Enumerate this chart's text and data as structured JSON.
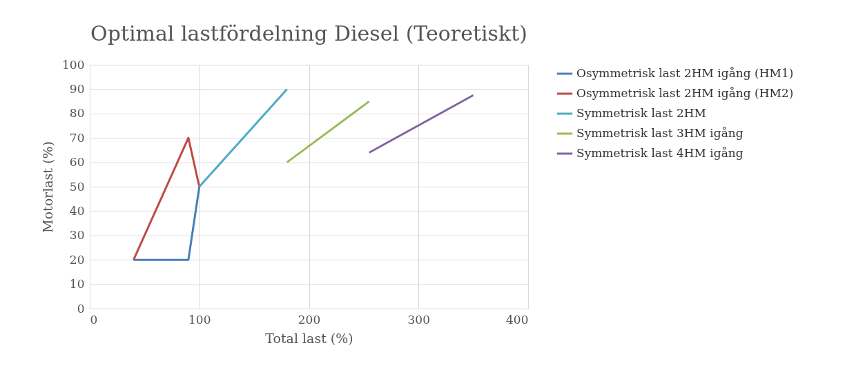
{
  "chart_data": {
    "type": "line",
    "title": "Optimal lastfördelning Diesel (Teoretiskt)",
    "xlabel": "Total last (%)",
    "ylabel": "Motorlast (%)",
    "series": [
      {
        "name": "Osymmetrisk last 2HM igång (HM1)",
        "color": "#4a7ebb",
        "x": [
          40,
          90,
          100
        ],
        "values": [
          20,
          20,
          50
        ]
      },
      {
        "name": "Osymmetrisk last 2HM igång (HM2)",
        "color": "#be4b48",
        "x": [
          40,
          90,
          100
        ],
        "values": [
          20,
          70,
          50
        ]
      },
      {
        "name": "Symmetrisk last 2HM",
        "color": "#4bacc6",
        "x": [
          100,
          180
        ],
        "values": [
          50,
          90
        ]
      },
      {
        "name": "Symmetrisk last 3HM igång",
        "color": "#9bbb59",
        "x": [
          180,
          255
        ],
        "values": [
          60,
          85
        ]
      },
      {
        "name": "Symmetrisk last 4HM igång",
        "color": "#8064a2",
        "x": [
          255,
          350
        ],
        "values": [
          64,
          87.5
        ]
      }
    ],
    "xlim": [
      0,
      400
    ],
    "xticks": [
      0,
      100,
      200,
      300,
      400
    ],
    "ylim": [
      0,
      100
    ],
    "yticks": [
      0,
      10,
      20,
      30,
      40,
      50,
      60,
      70,
      80,
      90,
      100
    ],
    "grid": true,
    "legend": "right",
    "marker": "none",
    "line_style": "solid"
  }
}
